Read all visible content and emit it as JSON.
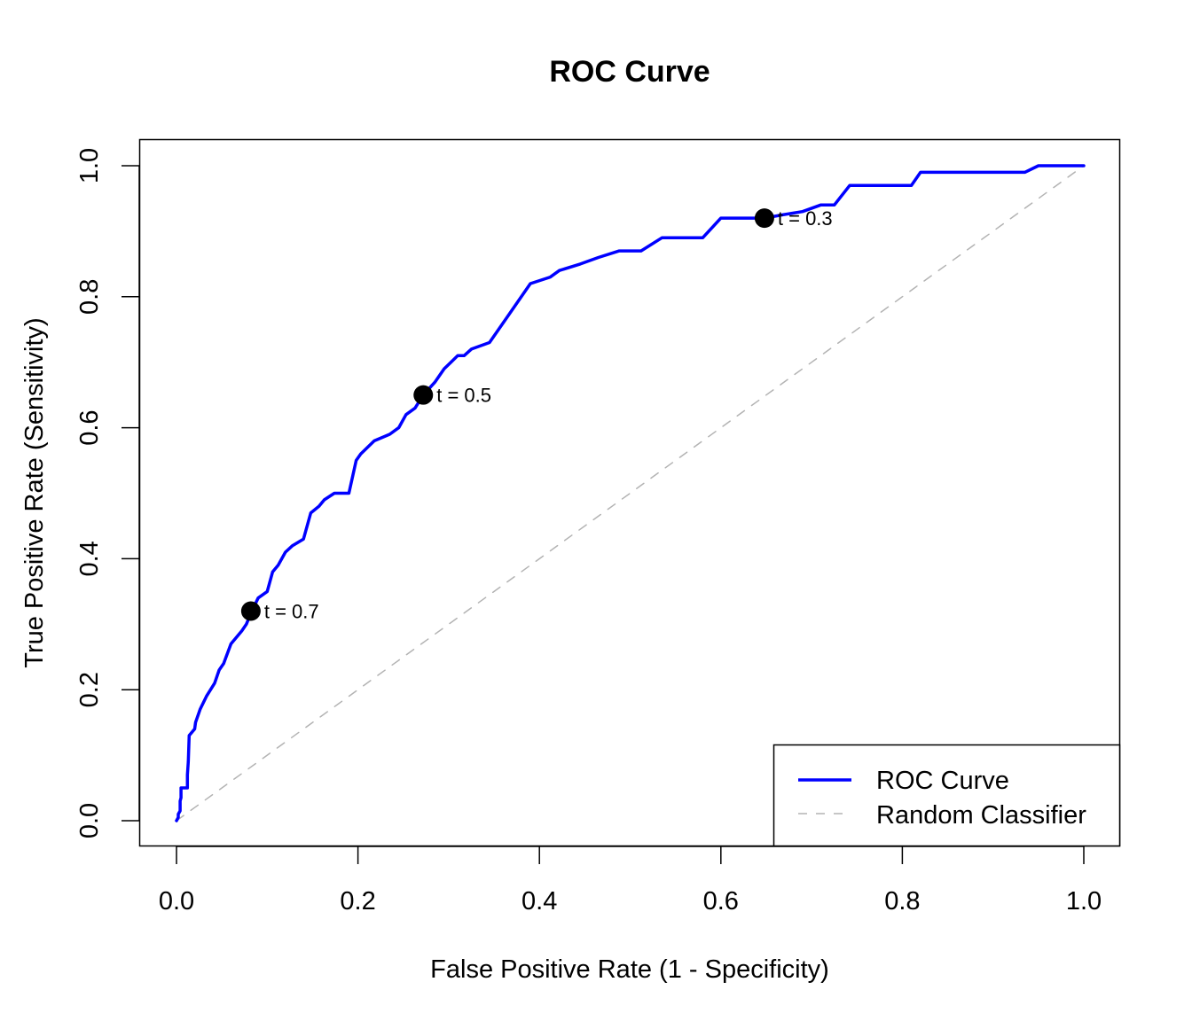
{
  "chart_data": {
    "type": "line",
    "title": "ROC Curve",
    "xlabel": "False Positive Rate (1 - Specificity)",
    "ylabel": "True Positive Rate (Sensitivity)",
    "xlim": [
      -0.04,
      1.04
    ],
    "ylim": [
      -0.04,
      1.04
    ],
    "xticks": [
      0.0,
      0.2,
      0.4,
      0.6,
      0.8,
      1.0
    ],
    "xtick_labels": [
      "0.0",
      "0.2",
      "0.4",
      "0.6",
      "0.8",
      "1.0"
    ],
    "yticks": [
      0.0,
      0.2,
      0.4,
      0.6,
      0.8,
      1.0
    ],
    "ytick_labels": [
      "0.0",
      "0.2",
      "0.4",
      "0.6",
      "0.8",
      "1.0"
    ],
    "grid": false,
    "legend_position": "bottom-right",
    "series": [
      {
        "name": "ROC Curve",
        "color": "#0000ff",
        "style": "solid",
        "x": [
          0,
          0.002,
          0.002,
          0.004,
          0.004,
          0.005,
          0.005,
          0.012,
          0.012,
          0.013,
          0.014,
          0.02,
          0.021,
          0.026,
          0.033,
          0.042,
          0.047,
          0.052,
          0.06,
          0.072,
          0.077,
          0.08,
          0.083,
          0.09,
          0.1,
          0.106,
          0.112,
          0.12,
          0.128,
          0.14,
          0.148,
          0.157,
          0.163,
          0.174,
          0.19,
          0.198,
          0.203,
          0.218,
          0.235,
          0.245,
          0.253,
          0.263,
          0.272,
          0.285,
          0.295,
          0.31,
          0.317,
          0.325,
          0.345,
          0.365,
          0.39,
          0.412,
          0.422,
          0.445,
          0.465,
          0.488,
          0.512,
          0.535,
          0.58,
          0.6,
          0.603,
          0.648,
          0.668,
          0.69,
          0.71,
          0.725,
          0.742,
          0.81,
          0.82,
          0.935,
          0.95,
          1.0
        ],
        "y": [
          0,
          0.005,
          0.01,
          0.015,
          0.03,
          0.035,
          0.05,
          0.05,
          0.07,
          0.09,
          0.13,
          0.14,
          0.15,
          0.17,
          0.19,
          0.21,
          0.23,
          0.24,
          0.27,
          0.29,
          0.3,
          0.31,
          0.32,
          0.34,
          0.35,
          0.38,
          0.39,
          0.41,
          0.42,
          0.43,
          0.47,
          0.48,
          0.49,
          0.5,
          0.5,
          0.55,
          0.56,
          0.58,
          0.59,
          0.6,
          0.62,
          0.63,
          0.65,
          0.67,
          0.69,
          0.71,
          0.71,
          0.72,
          0.73,
          0.77,
          0.82,
          0.83,
          0.84,
          0.85,
          0.86,
          0.87,
          0.87,
          0.89,
          0.89,
          0.92,
          0.92,
          0.92,
          0.925,
          0.93,
          0.94,
          0.94,
          0.97,
          0.97,
          0.99,
          0.99,
          1.0,
          1.0
        ]
      },
      {
        "name": "Random Classifier",
        "color": "#b3b3b3",
        "style": "dashed",
        "x": [
          0,
          1
        ],
        "y": [
          0,
          1
        ]
      }
    ],
    "points": [
      {
        "x": 0.082,
        "y": 0.32,
        "label": "t = 0.7"
      },
      {
        "x": 0.272,
        "y": 0.65,
        "label": "t = 0.5"
      },
      {
        "x": 0.648,
        "y": 0.92,
        "label": "t = 0.3"
      }
    ],
    "legend": [
      {
        "label": "ROC Curve",
        "color": "#0000ff",
        "style": "solid"
      },
      {
        "label": "Random Classifier",
        "color": "#b3b3b3",
        "style": "dashed"
      }
    ]
  }
}
